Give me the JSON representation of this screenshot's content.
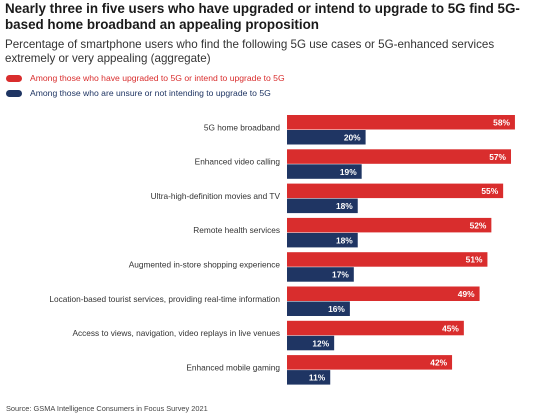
{
  "title": "Nearly three in five users who have upgraded or intend to upgrade to 5G find 5G-based home broadband an appealing proposition",
  "subtitle": "Percentage of smartphone users who find the following 5G use cases or 5G-enhanced services extremely or very appealing (aggregate)",
  "source": "Source: GSMA Intelligence Consumers in Focus Survey 2021",
  "colors": {
    "upgraded": "#d92d2d",
    "unsure": "#1f3563"
  },
  "chart_data": {
    "type": "bar",
    "orientation": "horizontal",
    "title": "Nearly three in five users who have upgraded or intend to upgrade to 5G find 5G-based home broadband an appealing proposition",
    "subtitle": "Percentage of smartphone users who find the following 5G use cases or 5G-enhanced services extremely or very appealing (aggregate)",
    "legend_position": "top-left",
    "grid": false,
    "value_suffix": "%",
    "xlim": [
      0,
      60
    ],
    "categories": [
      "5G home broadband",
      "Enhanced video calling",
      "Ultra-high-definition movies and TV",
      "Remote health services",
      "Augmented in-store shopping experience",
      "Location-based tourist services, providing real-time information",
      "Access to views, navigation, video replays in live venues",
      "Enhanced mobile gaming"
    ],
    "series": [
      {
        "name": "Among those who have upgraded to 5G or intend to upgrade to 5G",
        "color": "#d92d2d",
        "values": [
          58,
          57,
          55,
          52,
          51,
          49,
          45,
          42
        ]
      },
      {
        "name": "Among those who are unsure or not intending to upgrade to 5G",
        "color": "#1f3563",
        "values": [
          20,
          19,
          18,
          18,
          17,
          16,
          12,
          11
        ]
      }
    ]
  }
}
